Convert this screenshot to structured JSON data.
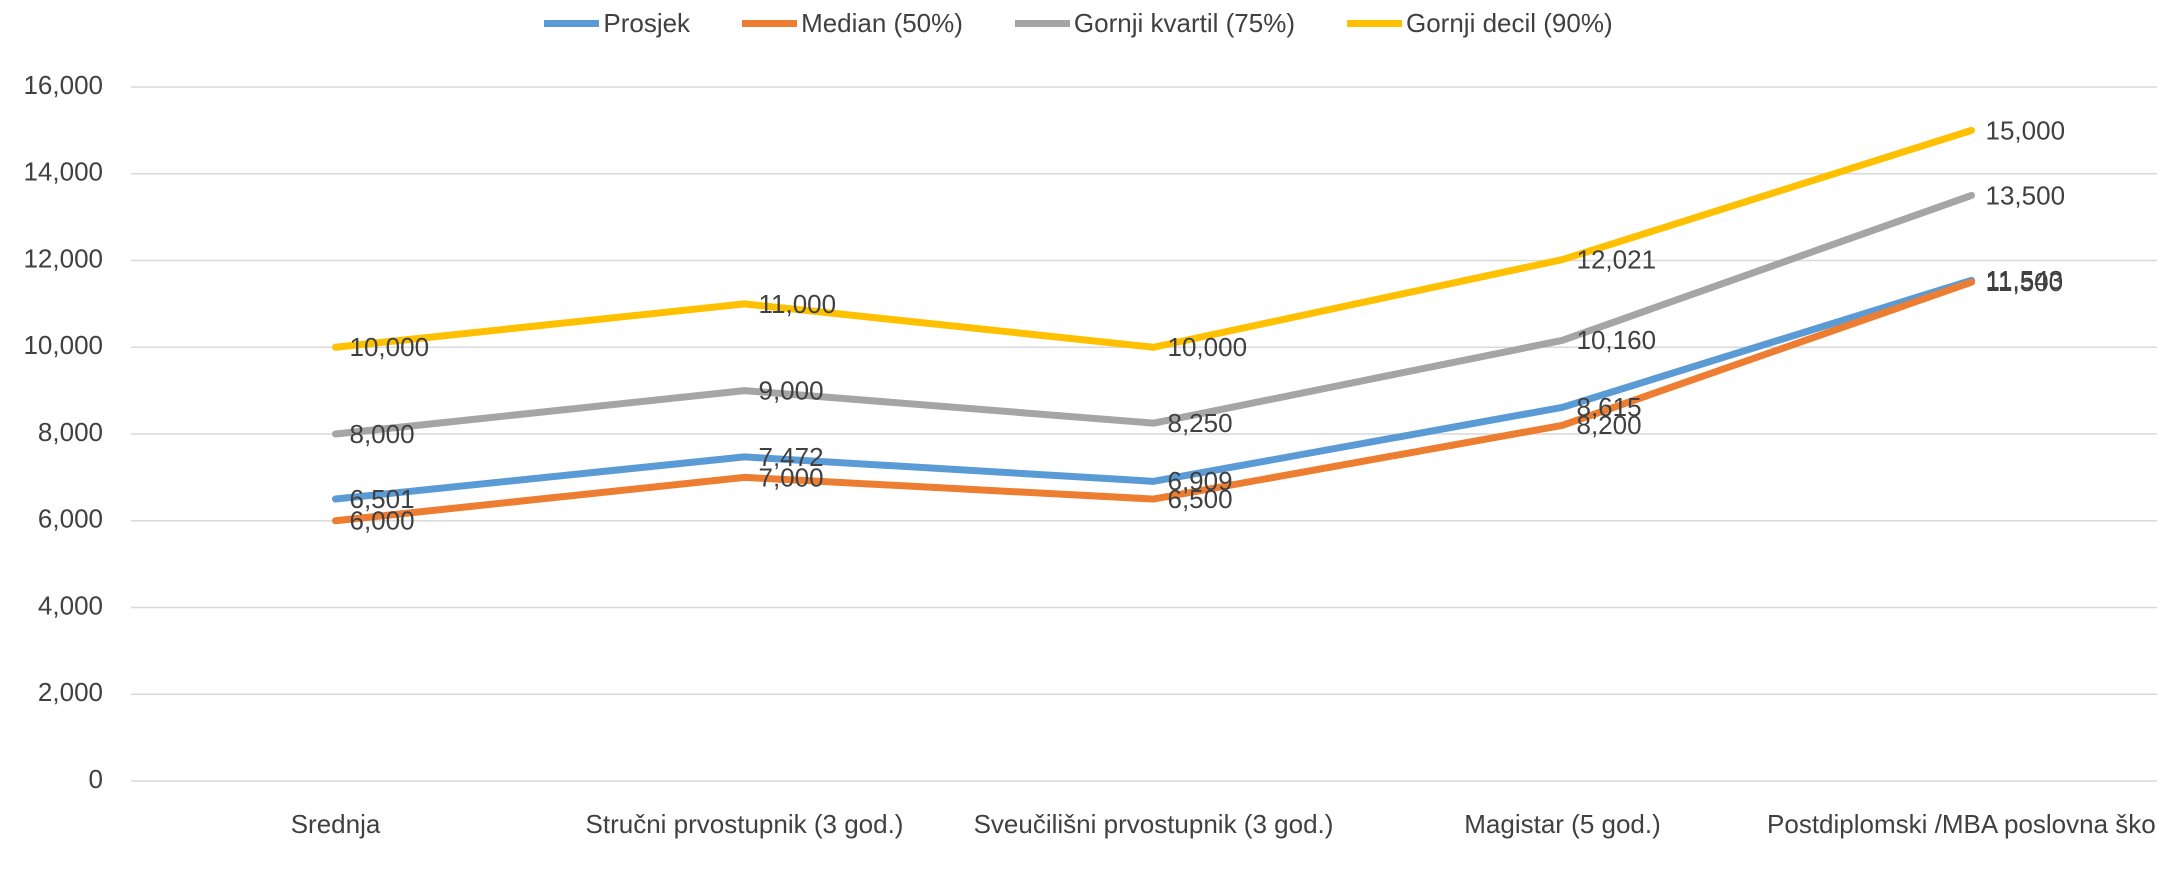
{
  "chart_data": {
    "type": "line",
    "categories": [
      "Srednja",
      "Stručni prvostupnik (3 god.)",
      "Sveučilišni prvostupnik (3 god.)",
      "Magistar (5 god.)",
      "Postdiplomski /MBA poslovna škola"
    ],
    "series": [
      {
        "name": "Prosjek",
        "color": "#5b9bd5",
        "values": [
          6501,
          7472,
          6909,
          8615,
          11543
        ],
        "value_labels": [
          "6,501",
          "7,472",
          "6,909",
          "8,615",
          "11,543"
        ]
      },
      {
        "name": "Median (50%)",
        "color": "#ed7d31",
        "values": [
          6000,
          7000,
          6500,
          8200,
          11500
        ],
        "value_labels": [
          "6,000",
          "7,000",
          "6,500",
          "8,200",
          "11,500"
        ]
      },
      {
        "name": "Gornji kvartil (75%)",
        "color": "#a5a5a5",
        "values": [
          8000,
          9000,
          8250,
          10160,
          13500
        ],
        "value_labels": [
          "8,000",
          "9,000",
          "8,250",
          "10,160",
          "13,500"
        ]
      },
      {
        "name": "Gornji decil (90%)",
        "color": "#ffc000",
        "values": [
          10000,
          11000,
          10000,
          12021,
          15000
        ],
        "value_labels": [
          "10,000",
          "11,000",
          "10,000",
          "12,021",
          "15,000"
        ]
      }
    ],
    "ylim": [
      0,
      16000
    ],
    "yticks": [
      0,
      {
        "value": 2000,
        "label": "2,000"
      },
      {
        "value": 4000,
        "label": "4,000"
      },
      {
        "value": 6000,
        "label": "6,000"
      },
      {
        "value": 8000,
        "label": "8,000"
      },
      {
        "value": 10000,
        "label": "10,000"
      },
      {
        "value": 12000,
        "label": "12,000"
      },
      {
        "value": 14000,
        "label": "14,000"
      },
      {
        "value": 16000,
        "label": "16,000"
      }
    ],
    "grid": true,
    "legend": "top"
  }
}
